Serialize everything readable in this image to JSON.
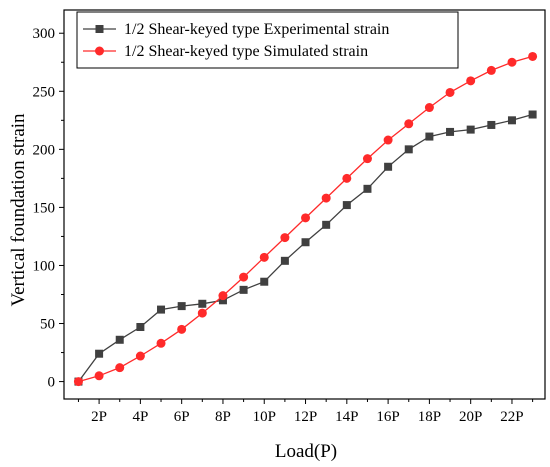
{
  "chart_data": {
    "type": "line",
    "xlabel": "Load(P)",
    "ylabel": "Vertical foundation strain",
    "x": [
      1,
      2,
      3,
      4,
      5,
      6,
      7,
      8,
      9,
      10,
      11,
      12,
      13,
      14,
      15,
      16,
      17,
      18,
      19,
      20,
      21,
      22,
      23
    ],
    "xlim": [
      0.3,
      23.6
    ],
    "ylim": [
      -15,
      320
    ],
    "x_ticks": [
      2,
      4,
      6,
      8,
      10,
      12,
      14,
      16,
      18,
      20,
      22
    ],
    "x_tick_labels": [
      "2P",
      "4P",
      "6P",
      "8P",
      "10P",
      "12P",
      "14P",
      "16P",
      "18P",
      "20P",
      "22P"
    ],
    "y_ticks": [
      0,
      50,
      100,
      150,
      200,
      250,
      300
    ],
    "y_tick_labels": [
      "0",
      "50",
      "100",
      "150",
      "200",
      "250",
      "300"
    ],
    "grid": false,
    "legend_position": "top-left",
    "series": [
      {
        "name": "1/2 Shear-keyed type Experimental strain",
        "color": "#404040",
        "marker": "square",
        "values": [
          0,
          24,
          36,
          47,
          62,
          65,
          67,
          70,
          79,
          86,
          104,
          120,
          135,
          152,
          166,
          185,
          200,
          211,
          215,
          217,
          221,
          225,
          230
        ]
      },
      {
        "name": "1/2 Shear-keyed type Simulated strain",
        "color": "#ff2a2a",
        "marker": "circle",
        "values": [
          0,
          5,
          12,
          22,
          33,
          45,
          59,
          74,
          90,
          107,
          124,
          141,
          158,
          175,
          192,
          208,
          222,
          236,
          249,
          259,
          268,
          275,
          280
        ]
      }
    ]
  }
}
